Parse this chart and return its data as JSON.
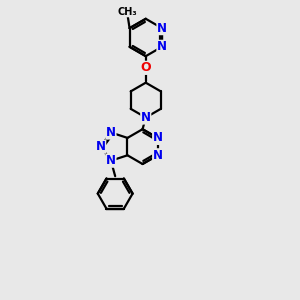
{
  "bg_color": "#e8e8e8",
  "bond_color": "#000000",
  "N_color": "#0000ee",
  "O_color": "#ee0000",
  "line_width": 1.6,
  "font_size": 8.5,
  "xlim": [
    0,
    10
  ],
  "ylim": [
    0,
    14
  ]
}
